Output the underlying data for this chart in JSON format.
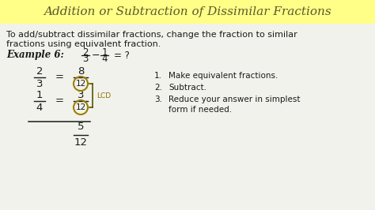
{
  "title": "Addition or Subtraction of Dissimilar Fractions",
  "title_color": "#5a5a2a",
  "title_bg": "#ffff88",
  "body_bg": "#f0f0e8",
  "text_color": "#1a1a1a",
  "dark_olive": "#555500",
  "lcd_color": "#8b7000",
  "circle_color": "#9a8000",
  "line1": "To add/subtract dissimilar fractions, change the fraction to similar",
  "line2": "fractions using equivalent fraction.",
  "example_label": "Example 6:",
  "step1": "Make equivalent fractions.",
  "step2": "Subtract.",
  "step3a": "Reduce your answer in simplest",
  "step3b": "form if needed."
}
